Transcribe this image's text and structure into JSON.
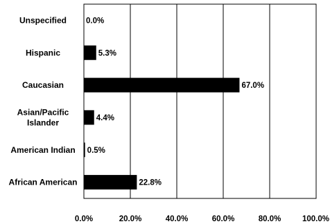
{
  "chart_data": {
    "type": "bar",
    "orientation": "horizontal",
    "categories": [
      "Unspecified",
      "Hispanic",
      "Caucasian",
      "Asian/Pacific Islander",
      "American Indian",
      "African American"
    ],
    "category_lines": [
      [
        "Unspecified"
      ],
      [
        "Hispanic"
      ],
      [
        "Caucasian"
      ],
      [
        "Asian/Pacific",
        "Islander"
      ],
      [
        "American Indian"
      ],
      [
        "African American"
      ]
    ],
    "values": [
      0.0,
      5.3,
      67.0,
      4.4,
      0.5,
      22.8
    ],
    "data_labels": [
      "0.0%",
      "5.3%",
      "67.0%",
      "4.4%",
      "0.5%",
      "22.8%"
    ],
    "xlim": [
      0,
      100
    ],
    "xticks": [
      0,
      20,
      40,
      60,
      80,
      100
    ],
    "xtick_labels": [
      "0.0%",
      "20.0%",
      "40.0%",
      "60.0%",
      "80.0%",
      "100.0%"
    ],
    "bar_color": "#000000",
    "grid": "vertical",
    "legend": "none"
  }
}
